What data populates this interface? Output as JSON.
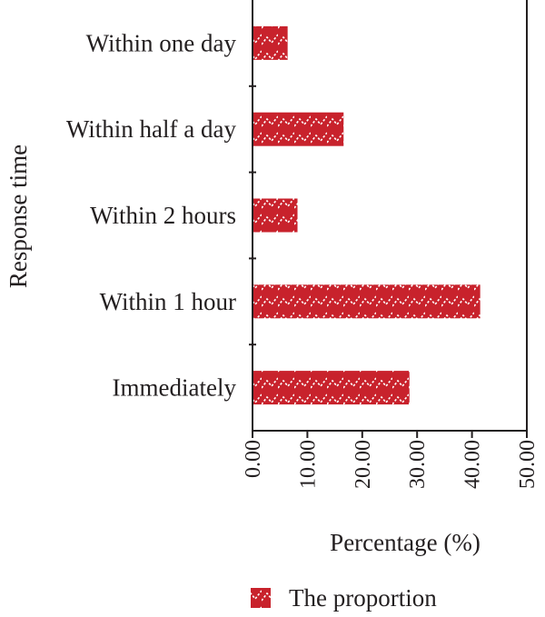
{
  "chart_data": {
    "type": "bar",
    "orientation": "horizontal",
    "categories": [
      "Within one day",
      "Within half a day",
      "Within 2 hours",
      "Within 1 hour",
      "Immediately"
    ],
    "series": [
      {
        "name": "The proportion",
        "values": [
          6.4,
          16.6,
          8.2,
          41.5,
          28.6
        ],
        "color": "#c8222c"
      }
    ],
    "xlabel": "Percentage (%)",
    "ylabel": "Response time",
    "xlim": [
      0,
      50
    ],
    "xticks": [
      "0.00",
      "10.00",
      "20.00",
      "30.00",
      "40.00",
      "50.00"
    ],
    "grid": false,
    "legend_position": "bottom",
    "bar_pattern": "white dashed zigzag hatch"
  }
}
